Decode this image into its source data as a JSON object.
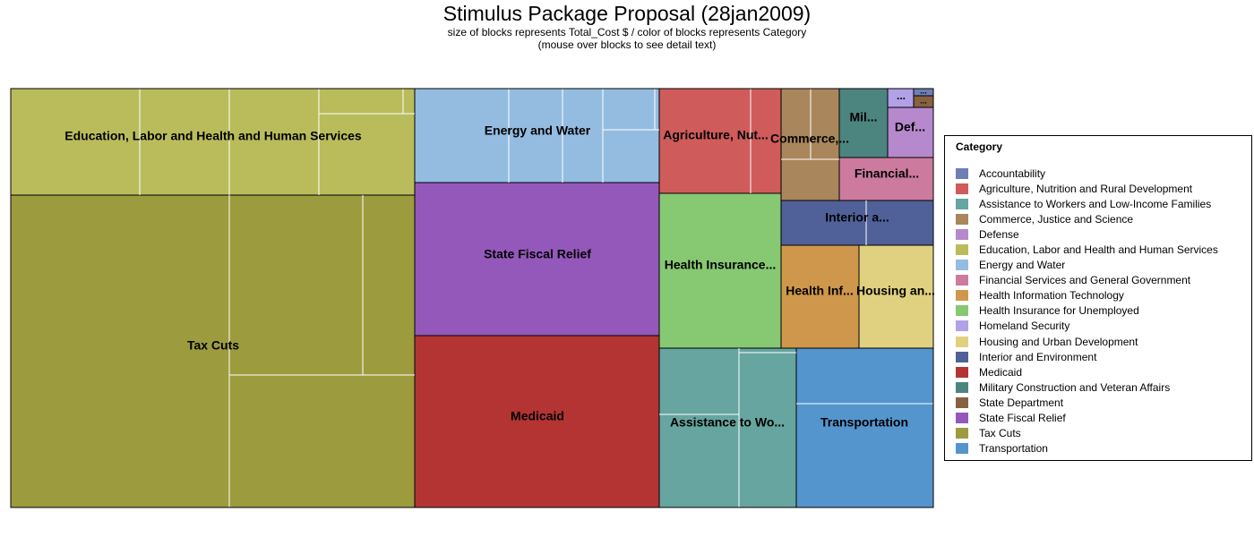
{
  "header": {
    "title": "Stimulus Package Proposal (28jan2009)",
    "subtitle_1": "size of blocks represents Total_Cost $ / color of blocks represents Category",
    "subtitle_2": "(mouse over blocks to see detail text)"
  },
  "legend": {
    "title": "Category",
    "items": [
      {
        "label": "Accountability",
        "color": "#6F7EB5"
      },
      {
        "label": "Agriculture, Nutrition and Rural Development",
        "color": "#D05B5B"
      },
      {
        "label": "Assistance to Workers and Low-Income Families",
        "color": "#66A5A0"
      },
      {
        "label": "Commerce, Justice and Science",
        "color": "#A9865B"
      },
      {
        "label": "Defense",
        "color": "#B689CD"
      },
      {
        "label": "Education, Labor and Health and Human Services",
        "color": "#BABC5C"
      },
      {
        "label": "Energy and Water",
        "color": "#94BCE1"
      },
      {
        "label": "Financial Services and General Government",
        "color": "#CC7B9F"
      },
      {
        "label": "Health Information Technology",
        "color": "#CF974B"
      },
      {
        "label": "Health Insurance for Unemployed",
        "color": "#87C873"
      },
      {
        "label": "Homeland Security",
        "color": "#B1A1E6"
      },
      {
        "label": "Housing and Urban Development",
        "color": "#E0D181"
      },
      {
        "label": "Interior and Environment",
        "color": "#4F6198"
      },
      {
        "label": "Medicaid",
        "color": "#B43333"
      },
      {
        "label": "Military Construction and Veteran Affairs",
        "color": "#4C8580"
      },
      {
        "label": "State Department",
        "color": "#876240"
      },
      {
        "label": "State Fiscal Relief",
        "color": "#9458BA"
      },
      {
        "label": "Tax Cuts",
        "color": "#9C9C3F"
      },
      {
        "label": "Transportation",
        "color": "#5595CE"
      }
    ]
  },
  "chart_data": {
    "type": "treemap",
    "size_variable": "Total_Cost",
    "color_variable": "Category",
    "blocks": [
      {
        "category": "Tax Cuts",
        "label": "Tax Cuts",
        "approx_share": 0.3015
      },
      {
        "category": "Education, Labor and Health and Human Services",
        "label": "Education, Labor and Health and Human Services",
        "approx_share": 0.111
      },
      {
        "category": "Medicaid",
        "label": "Medicaid",
        "approx_share": 0.1096
      },
      {
        "category": "State Fiscal Relief",
        "label": "State Fiscal Relief",
        "approx_share": 0.0971
      },
      {
        "category": "Energy and Water",
        "label": "Energy and Water",
        "approx_share": 0.0594
      },
      {
        "category": "Transportation",
        "label": "Transportation",
        "approx_share": 0.057
      },
      {
        "category": "Assistance to Workers and Low-Income Families",
        "label": "Assistance to Wo...",
        "approx_share": 0.0565
      },
      {
        "category": "Health Insurance for Unemployed",
        "label": "Health Insurance...",
        "approx_share": 0.0486
      },
      {
        "category": "Agriculture, Nutrition and Rural Development",
        "label": "Agriculture, Nut...",
        "approx_share": 0.0329
      },
      {
        "category": "Housing and Urban Development",
        "label": "Housing an...",
        "approx_share": 0.0203
      },
      {
        "category": "Health Information Technology",
        "label": "Health Inf...",
        "approx_share": 0.0181
      },
      {
        "category": "Commerce, Justice and Science",
        "label": "Commerce,...",
        "approx_share": 0.0173
      },
      {
        "category": "Interior and Environment",
        "label": "Interior a...",
        "approx_share": 0.0175
      },
      {
        "category": "Military Construction and Veteran Affairs",
        "label": "Mil...",
        "approx_share": 0.0083
      },
      {
        "category": "Financial Services and General Government",
        "label": "Financial...",
        "approx_share": 0.0102
      },
      {
        "category": "Defense",
        "label": "Def...",
        "approx_share": 0.005
      },
      {
        "category": "Homeland Security",
        "label": "...",
        "approx_share": 0.0013
      },
      {
        "category": "Accountability",
        "label": "...",
        "approx_share": 0.0002
      },
      {
        "category": "State Department",
        "label": "...",
        "approx_share": 0.0004
      }
    ]
  }
}
